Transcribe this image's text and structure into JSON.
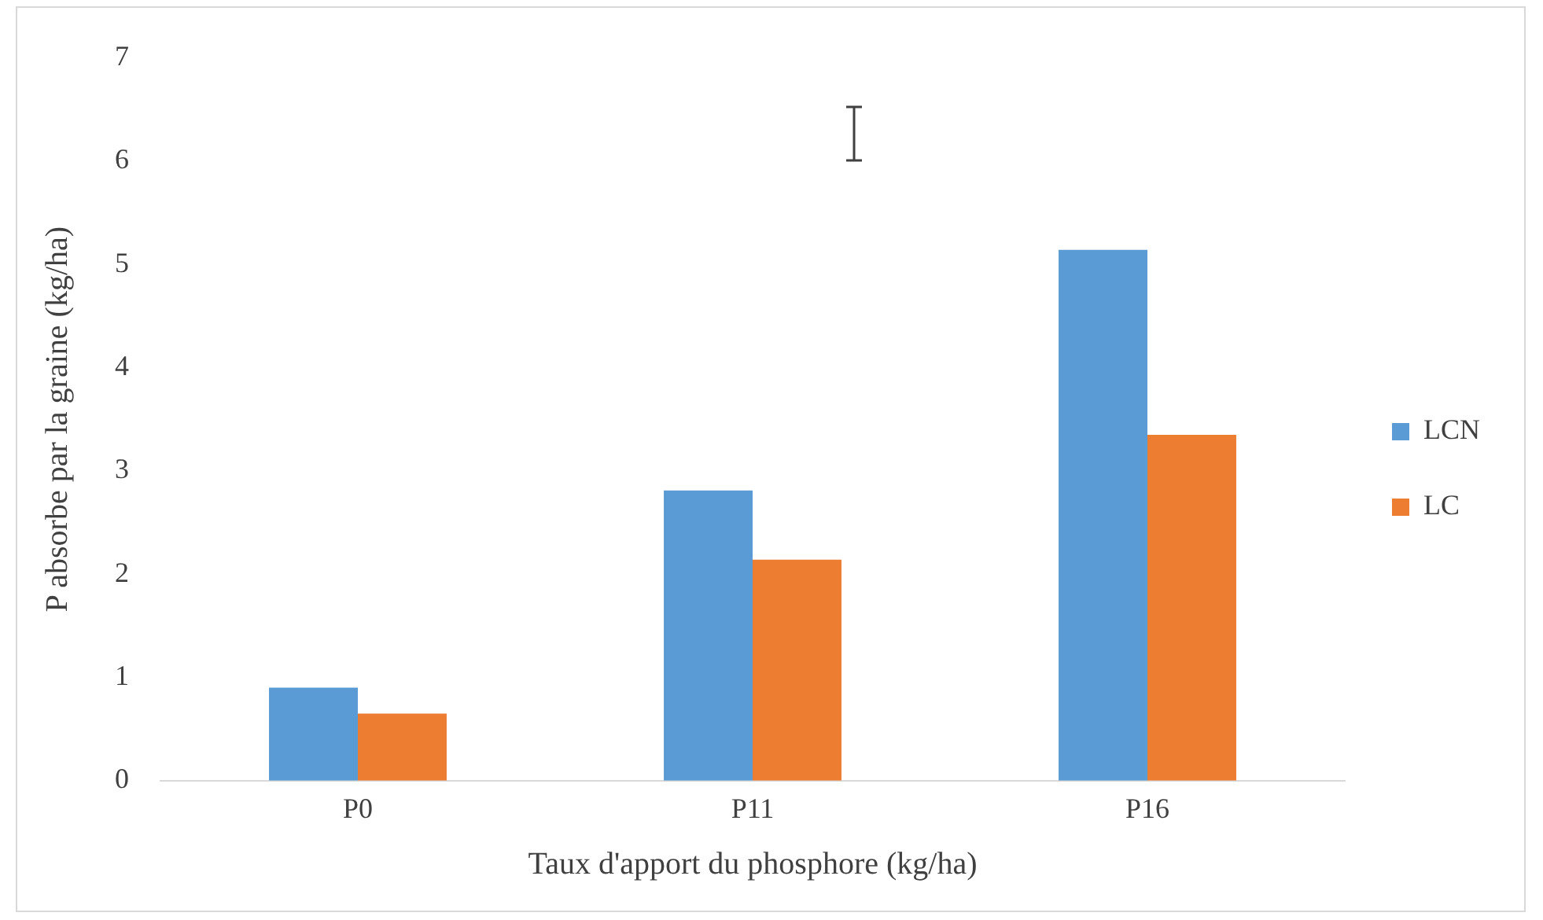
{
  "chart_data": {
    "type": "bar",
    "xlabel": "Taux d'apport du phosphore (kg/ha)",
    "ylabel": "P absorbe par la graine (kg/ha)",
    "categories": [
      "P0",
      "P11",
      "P16"
    ],
    "series": [
      {
        "name": "LCN",
        "color": "#5b9bd5",
        "values": [
          0.9,
          2.81,
          5.14
        ]
      },
      {
        "name": "LC",
        "color": "#ed7d31",
        "values": [
          0.65,
          2.14,
          3.35
        ]
      }
    ],
    "ylim": [
      0,
      7
    ],
    "yticks": [
      0,
      1,
      2,
      3,
      4,
      5,
      6,
      7
    ],
    "grid": false,
    "legend": "right"
  }
}
